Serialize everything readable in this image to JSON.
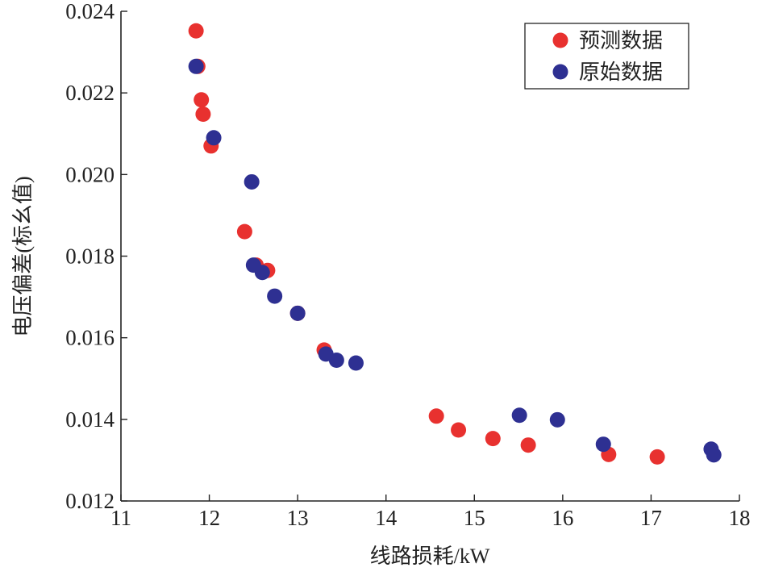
{
  "chart_data": {
    "type": "scatter",
    "title": "",
    "xlabel": "线路损耗/kW",
    "ylabel": "电压偏差(标幺值)",
    "xlim": [
      11,
      18
    ],
    "ylim": [
      0.012,
      0.024
    ],
    "x_ticks": [
      "11",
      "12",
      "13",
      "14",
      "15",
      "16",
      "17",
      "18"
    ],
    "y_ticks": [
      "0.012",
      "0.014",
      "0.016",
      "0.018",
      "0.020",
      "0.022",
      "0.024"
    ],
    "grid": false,
    "legend_position": "top-right",
    "series": [
      {
        "name": "预测数据",
        "color": "#e8312f",
        "points": [
          [
            11.85,
            0.02352
          ],
          [
            11.87,
            0.02265
          ],
          [
            11.91,
            0.02183
          ],
          [
            11.93,
            0.02148
          ],
          [
            12.02,
            0.0207
          ],
          [
            12.4,
            0.0186
          ],
          [
            12.53,
            0.01778
          ],
          [
            12.66,
            0.01765
          ],
          [
            13.0,
            0.0166
          ],
          [
            13.3,
            0.0157
          ],
          [
            14.57,
            0.01408
          ],
          [
            14.82,
            0.01374
          ],
          [
            15.21,
            0.01353
          ],
          [
            15.61,
            0.01337
          ],
          [
            16.52,
            0.01314
          ],
          [
            17.07,
            0.01308
          ]
        ]
      },
      {
        "name": "原始数据",
        "color": "#2e3092",
        "points": [
          [
            11.85,
            0.02265
          ],
          [
            12.05,
            0.0209
          ],
          [
            12.48,
            0.01982
          ],
          [
            12.5,
            0.01778
          ],
          [
            12.6,
            0.0176
          ],
          [
            12.74,
            0.01702
          ],
          [
            13.0,
            0.0166
          ],
          [
            13.32,
            0.0156
          ],
          [
            13.44,
            0.01545
          ],
          [
            13.66,
            0.01538
          ],
          [
            15.51,
            0.0141
          ],
          [
            15.94,
            0.01399
          ],
          [
            16.46,
            0.01339
          ],
          [
            17.68,
            0.01327
          ],
          [
            17.71,
            0.01313
          ]
        ]
      }
    ]
  }
}
